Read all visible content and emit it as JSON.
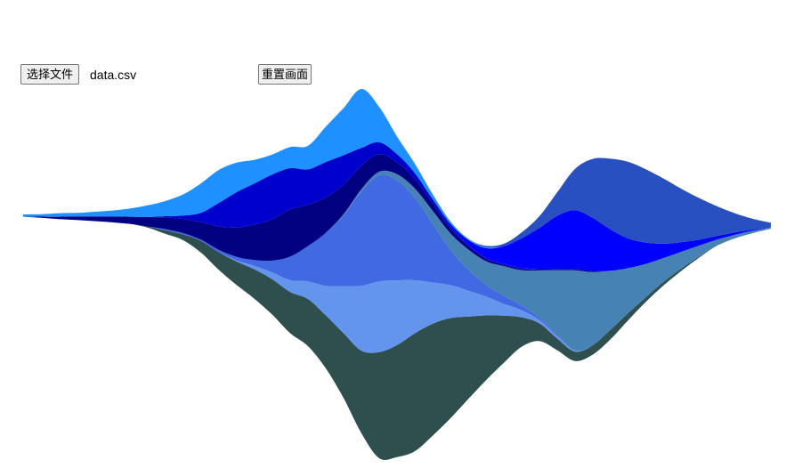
{
  "toolbar": {
    "choose_file_label": "选择文件",
    "file_name": "data.csv",
    "reset_label": "重置画面"
  },
  "chart_data": {
    "type": "area",
    "layout": "streamgraph-wiggle",
    "title": "",
    "xlabel": "",
    "ylabel": "",
    "grid": false,
    "legend": "none",
    "x": [
      0,
      1,
      2,
      3,
      4,
      5,
      6,
      7,
      8,
      9,
      10,
      11,
      12,
      13,
      14,
      15,
      16,
      17,
      18,
      19,
      20,
      21,
      22,
      23,
      24,
      25,
      26,
      27,
      28,
      29,
      30,
      31,
      32,
      33,
      34,
      35,
      36,
      37,
      38,
      39,
      40,
      41,
      42
    ],
    "series": [
      {
        "color": "#2f4f4f",
        "values": [
          0,
          0,
          0,
          0,
          0,
          0,
          0,
          0.1,
          0.3,
          0.5,
          1,
          1.5,
          2,
          2.5,
          3,
          3.5,
          4,
          4.5,
          5.5,
          7,
          9,
          9.5,
          10,
          9.5,
          8.5,
          7,
          5.5,
          4,
          2.5,
          1.5,
          1,
          0.8,
          0.8,
          0.8,
          0.6,
          0.4,
          0.3,
          0.2,
          0.1,
          0,
          0,
          0,
          0
        ]
      },
      {
        "color": "#6495ed",
        "values": [
          0,
          0,
          0,
          0,
          0,
          0,
          0,
          0,
          0,
          0,
          0,
          0,
          0.1,
          0.3,
          0.6,
          1,
          1.5,
          2.5,
          4,
          5.5,
          6,
          5.5,
          4.5,
          3.5,
          2.8,
          2.2,
          1.6,
          1,
          0.6,
          0.3,
          0.2,
          0.1,
          0,
          0,
          0,
          0,
          0,
          0,
          0,
          0,
          0,
          0,
          0
        ]
      },
      {
        "color": "#4169e1",
        "values": [
          0,
          0,
          0,
          0,
          0,
          0,
          0,
          0,
          0.1,
          0.1,
          0.1,
          0.2,
          0.3,
          0.5,
          1,
          2,
          3,
          4.5,
          6,
          8,
          9,
          8.5,
          7,
          5,
          3,
          1.8,
          1,
          0.7,
          0.4,
          0.2,
          0.1,
          0,
          0,
          0,
          0,
          0,
          0,
          0,
          0,
          0,
          0,
          0,
          0
        ]
      },
      {
        "color": "#4682b4",
        "values": [
          0,
          0,
          0,
          0,
          0,
          0,
          0,
          0,
          0,
          0,
          0,
          0,
          0,
          0,
          0,
          0,
          0,
          0,
          0.1,
          0.2,
          0.3,
          0.5,
          0.8,
          1.1,
          1.4,
          1.7,
          2,
          2.5,
          3,
          4,
          5.5,
          6.8,
          6.2,
          5,
          3.8,
          2.8,
          2,
          1.4,
          0.9,
          0.5,
          0.3,
          0.2,
          0.1
        ]
      },
      {
        "color": "#000080",
        "values": [
          0,
          0.1,
          0.2,
          0.3,
          0.4,
          0.5,
          0.6,
          0.8,
          1,
          1.2,
          1.5,
          2,
          2.5,
          3,
          3.5,
          4,
          3.5,
          3,
          2.5,
          2,
          1.5,
          1,
          0.8,
          0.6,
          0.4,
          0.3,
          0.2,
          0.1,
          0.1,
          0.1,
          0.1,
          0.1,
          0.1,
          0,
          0,
          0,
          0,
          0,
          0,
          0,
          0,
          0,
          0
        ]
      },
      {
        "color": "#0000cd",
        "values": [
          0,
          0,
          0,
          0,
          0,
          0,
          0,
          0,
          0.1,
          0.3,
          0.8,
          2,
          3,
          3.5,
          3.8,
          3.5,
          3,
          3,
          2.5,
          1.5,
          1,
          0.7,
          0.5,
          0.3,
          0.2,
          0.1,
          0.1,
          0.1,
          0.1,
          0,
          0,
          0,
          0,
          0,
          0,
          0,
          0,
          0,
          0,
          0,
          0,
          0,
          0
        ]
      },
      {
        "color": "#0000ff",
        "values": [
          0,
          0,
          0,
          0,
          0,
          0,
          0,
          0,
          0,
          0,
          0,
          0,
          0,
          0,
          0,
          0,
          0,
          0,
          0,
          0,
          0,
          0,
          0,
          0.1,
          0.2,
          0.4,
          0.8,
          1.5,
          2.5,
          3.5,
          4.5,
          5,
          4.5,
          3.5,
          2.5,
          1.8,
          1.2,
          0.8,
          0.5,
          0.3,
          0.2,
          0.1,
          0
        ]
      },
      {
        "color": "#1e90ff",
        "values": [
          0.2,
          0.2,
          0.3,
          0.3,
          0.4,
          0.5,
          0.7,
          1,
          1.3,
          1.8,
          2.5,
          2.8,
          2.5,
          2,
          1.7,
          1.8,
          2,
          3,
          4,
          5,
          3,
          1.5,
          0.8,
          0.4,
          0.2,
          0.1,
          0.1,
          0,
          0,
          0,
          0,
          0,
          0,
          0,
          0,
          0,
          0,
          0,
          0,
          0,
          0,
          0,
          0
        ]
      },
      {
        "color": "#2850c0",
        "values": [
          0,
          0,
          0,
          0,
          0,
          0,
          0,
          0,
          0,
          0,
          0,
          0,
          0,
          0,
          0,
          0,
          0,
          0,
          0,
          0,
          0,
          0,
          0,
          0,
          0,
          0,
          0.1,
          0.2,
          0.5,
          1,
          2,
          3.5,
          5,
          6,
          6.5,
          6.2,
          5.5,
          4.5,
          3.5,
          2.5,
          1.6,
          0.9,
          0.4
        ]
      }
    ]
  }
}
